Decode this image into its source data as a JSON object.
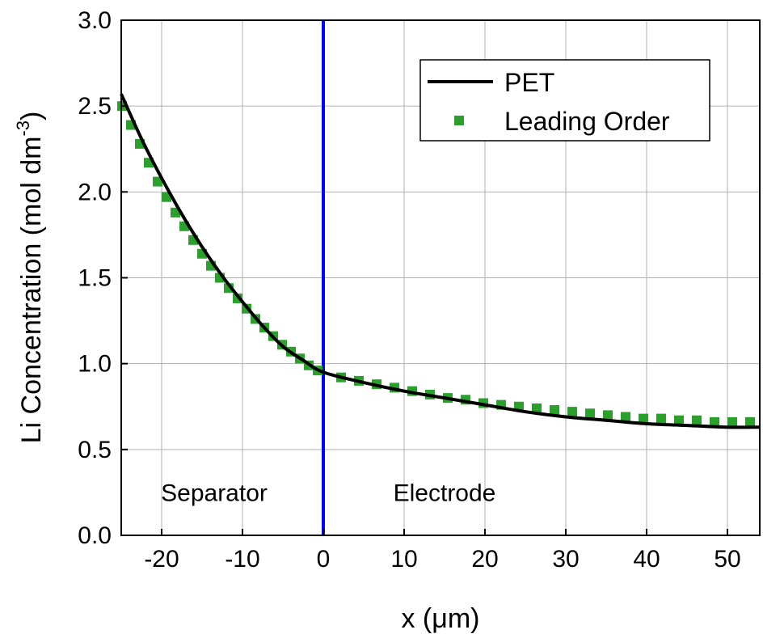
{
  "chart_data": {
    "type": "line",
    "title": "",
    "xlabel": "x (μm)",
    "ylabel": "Li Concentration (mol dm",
    "ylabel_superscript": "-3",
    "ylabel_suffix": ")",
    "xlim": [
      -25,
      54
    ],
    "ylim": [
      0.0,
      3.0
    ],
    "xticks": [
      -20,
      -10,
      0,
      10,
      20,
      30,
      40,
      50
    ],
    "yticks": [
      0.0,
      0.5,
      1.0,
      1.5,
      2.0,
      2.5,
      3.0
    ],
    "xtick_labels": [
      "-20",
      "-10",
      "0",
      "10",
      "20",
      "30",
      "40",
      "50"
    ],
    "ytick_labels": [
      "0.0",
      "0.5",
      "1.0",
      "1.5",
      "2.0",
      "2.5",
      "3.0"
    ],
    "grid": true,
    "legend_position": "top-right",
    "series": [
      {
        "name": "PET",
        "style": "solid-line",
        "color": "#000000",
        "x": [
          -25,
          -22.5,
          -20,
          -17.5,
          -15,
          -12.5,
          -10,
          -7.5,
          -5,
          -2.5,
          0,
          5,
          10,
          15,
          20,
          25,
          30,
          35,
          40,
          45,
          50,
          54
        ],
        "values": [
          2.57,
          2.31,
          2.08,
          1.87,
          1.68,
          1.51,
          1.36,
          1.22,
          1.1,
          1.02,
          0.95,
          0.89,
          0.84,
          0.8,
          0.76,
          0.72,
          0.69,
          0.67,
          0.65,
          0.64,
          0.63,
          0.63
        ]
      },
      {
        "name": "Leading Order",
        "style": "square-markers",
        "color": "#2ca02c",
        "x": [
          -24.9,
          -23.8,
          -22.7,
          -21.6,
          -20.5,
          -19.4,
          -18.3,
          -17.2,
          -16.1,
          -15,
          -13.9,
          -12.8,
          -11.7,
          -10.6,
          -9.5,
          -8.4,
          -7.3,
          -6.2,
          -5.1,
          -4,
          -2.9,
          -1.8,
          -0.7,
          2.2,
          4.4,
          6.6,
          8.8,
          11,
          13.2,
          15.4,
          17.6,
          19.8,
          22,
          24.2,
          26.4,
          28.6,
          30.8,
          33,
          35.2,
          37.4,
          39.6,
          41.8,
          44,
          46.2,
          48.4,
          50.6,
          52.8
        ],
        "values": [
          2.5,
          2.39,
          2.28,
          2.17,
          2.06,
          1.97,
          1.88,
          1.8,
          1.72,
          1.64,
          1.57,
          1.5,
          1.44,
          1.38,
          1.32,
          1.26,
          1.21,
          1.16,
          1.11,
          1.07,
          1.03,
          0.99,
          0.96,
          0.92,
          0.9,
          0.88,
          0.86,
          0.84,
          0.82,
          0.8,
          0.79,
          0.77,
          0.76,
          0.75,
          0.74,
          0.73,
          0.72,
          0.71,
          0.7,
          0.69,
          0.68,
          0.68,
          0.67,
          0.67,
          0.66,
          0.66,
          0.66
        ]
      }
    ],
    "vertical_line": {
      "x": 0,
      "color": "#0000ff"
    },
    "annotations": [
      {
        "text": "Separator",
        "x": -13.5,
        "y": 0.2
      },
      {
        "text": "Electrode",
        "x": 15,
        "y": 0.2
      }
    ]
  }
}
